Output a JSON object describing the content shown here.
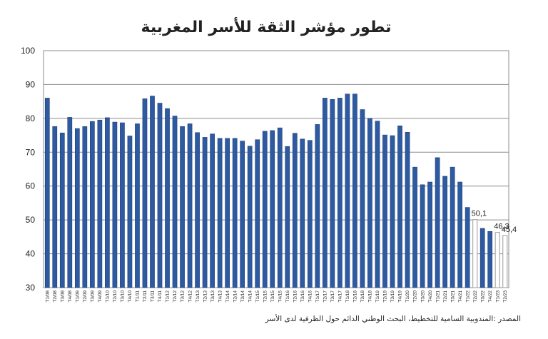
{
  "chart_data": {
    "type": "bar",
    "title": "تطور مؤشر الثقة للأسر المغربية",
    "source": "المصدر :المندوبية السامية للتخطيط، البحث الوطني الدائم حول الظرفية لدى الأسر",
    "ylim": [
      30,
      100
    ],
    "yticks": [
      30,
      40,
      50,
      60,
      70,
      80,
      90,
      100
    ],
    "grid": true,
    "colors": {
      "bar": "#2e5aa1",
      "bar_edge": "#1d3f7a",
      "highlight_bar": "#ffffff",
      "highlight_edge": "#aaaaaa",
      "grid": "#8c8c8c"
    },
    "categories": [
      "T1/08",
      "T2/08",
      "T3/08",
      "T4/08",
      "T1/09",
      "T2/09",
      "T3/09",
      "T4/09",
      "T1/10",
      "T2/10",
      "T3/10",
      "T4/10",
      "T1/11",
      "T2/11",
      "T3/11",
      "T4/11",
      "T1/12",
      "T2/12",
      "T3/12",
      "T4/12",
      "T1/13",
      "T2/13",
      "T3/13",
      "T4/13",
      "T1/14",
      "T2/14",
      "T3/14",
      "T4/14",
      "T1/15",
      "T2/15",
      "T3/15",
      "T4/15",
      "T1/16",
      "T2/16",
      "T3/16",
      "T4/16",
      "T1/17",
      "T2/17",
      "T3/17",
      "T4/17",
      "T1/18",
      "T2/18",
      "T3/18",
      "T4/18",
      "T1/19",
      "T2/19",
      "T3/19",
      "T4/19",
      "T1/20",
      "T2/20",
      "T3/20",
      "T4/20",
      "T1/21",
      "T2/21",
      "T3/21",
      "T4/21",
      "T1/22",
      "T2/22",
      "T3/22",
      "T4/22",
      "T1/23",
      "T2/23"
    ],
    "values": [
      86.0,
      77.6,
      75.7,
      80.3,
      77.0,
      77.6,
      79.1,
      79.5,
      80.2,
      78.9,
      78.7,
      74.8,
      78.4,
      85.8,
      86.6,
      84.5,
      82.9,
      80.7,
      77.6,
      78.4,
      75.8,
      74.4,
      75.4,
      74.1,
      74.1,
      74.1,
      73.3,
      71.8,
      73.7,
      76.2,
      76.4,
      77.2,
      71.7,
      75.6,
      73.9,
      73.5,
      78.2,
      86.0,
      85.6,
      86.0,
      87.2,
      87.2,
      82.6,
      80.0,
      79.2,
      75.1,
      74.9,
      77.8,
      75.9,
      65.6,
      60.4,
      61.2,
      68.4,
      62.9,
      65.6,
      61.2,
      53.7,
      50.1,
      47.5,
      46.6,
      46.3,
      45.4
    ],
    "highlight_indices": [
      57,
      60,
      61
    ],
    "data_labels": [
      {
        "index": 57,
        "text": "50,1"
      },
      {
        "index": 60,
        "text": "46,3"
      },
      {
        "index": 61,
        "text": "45,4"
      }
    ]
  }
}
